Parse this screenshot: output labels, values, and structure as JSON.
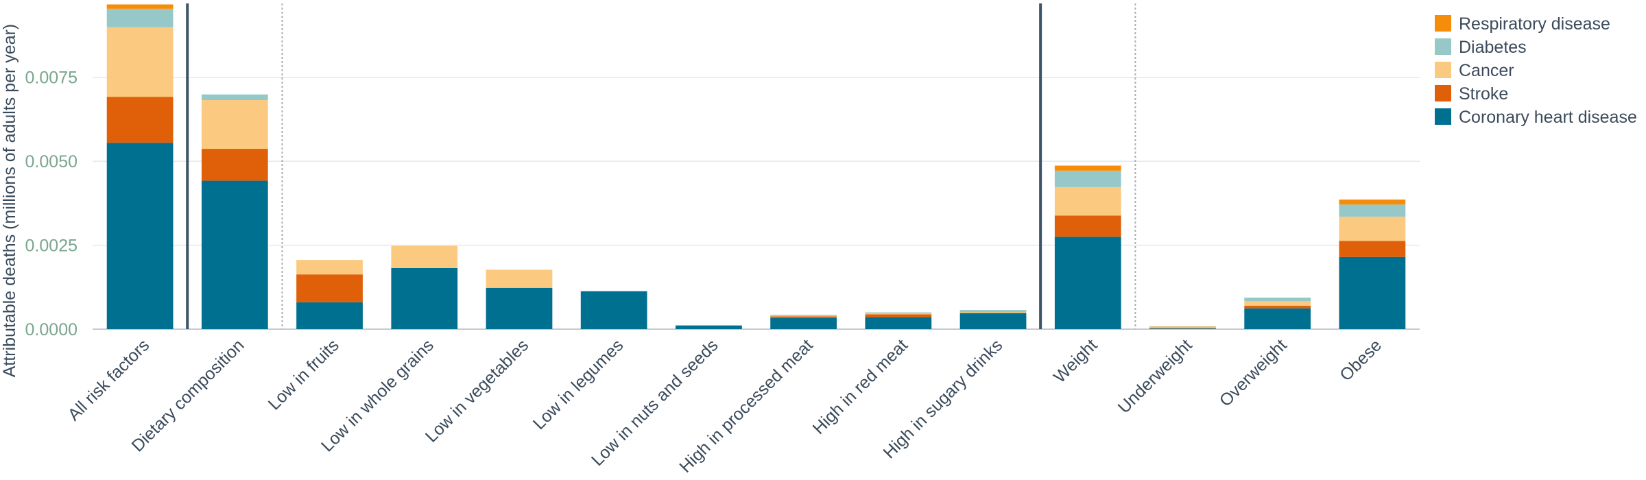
{
  "chart_data": {
    "type": "bar",
    "stacked": true,
    "ylabel": "Attributable deaths (millions of adults per year)",
    "xlabel": "",
    "ylim": [
      0,
      0.0097
    ],
    "yticks": [
      0.0,
      0.0025,
      0.005,
      0.0075
    ],
    "ytick_labels": [
      "0.0000",
      "0.0025",
      "0.0050",
      "0.0075"
    ],
    "grid": true,
    "legend_position": "top-right",
    "categories": [
      "All risk factors",
      "Dietary composition",
      "Low in fruits",
      "Low in whole grains",
      "Low in vegetables",
      "Low in legumes",
      "Low in nuts and seeds",
      "High in processed meat",
      "High in red meat",
      "High in sugary drinks",
      "Weight",
      "Underweight",
      "Overweight",
      "Obese"
    ],
    "series": [
      {
        "name": "Coronary heart disease",
        "color": "#007090",
        "values": [
          0.00555,
          0.00442,
          0.0008,
          0.00182,
          0.00123,
          0.00113,
          0.00011,
          0.00033,
          0.00036,
          0.00048,
          0.00275,
          2e-05,
          0.00062,
          0.00215
        ]
      },
      {
        "name": "Stroke",
        "color": "#e0600a",
        "values": [
          0.00137,
          0.00095,
          0.00083,
          0.0,
          0.0,
          0.0,
          0.0,
          5e-05,
          8e-05,
          0.0,
          0.00063,
          1e-05,
          8e-05,
          0.00048
        ]
      },
      {
        "name": "Cancer",
        "color": "#fcc980",
        "values": [
          0.00207,
          0.00145,
          0.00043,
          0.00066,
          0.00054,
          0.0,
          0.0,
          3e-05,
          4e-05,
          3e-05,
          0.00085,
          2e-05,
          0.00013,
          0.00072
        ]
      },
      {
        "name": "Diabetes",
        "color": "#96c8c8",
        "values": [
          0.00055,
          0.00017,
          0.0,
          0.0,
          0.0,
          0.0,
          0.0,
          2e-05,
          2e-05,
          6e-05,
          0.00049,
          2e-05,
          0.00011,
          0.00036
        ]
      },
      {
        "name": "Respiratory disease",
        "color": "#f58c0a",
        "values": [
          0.00013,
          0.0,
          0.0,
          0.0,
          0.0,
          0.0,
          0.0,
          0.0,
          0.0,
          0.0,
          0.00015,
          1e-05,
          0.0,
          0.00015
        ]
      }
    ],
    "legend_order": [
      "Respiratory disease",
      "Diabetes",
      "Cancer",
      "Stroke",
      "Coronary heart disease"
    ],
    "separators": [
      {
        "after_index": 0,
        "style": "solid"
      },
      {
        "after_index": 1,
        "style": "dotted"
      },
      {
        "after_index": 9,
        "style": "solid"
      },
      {
        "after_index": 10,
        "style": "dotted"
      }
    ]
  }
}
